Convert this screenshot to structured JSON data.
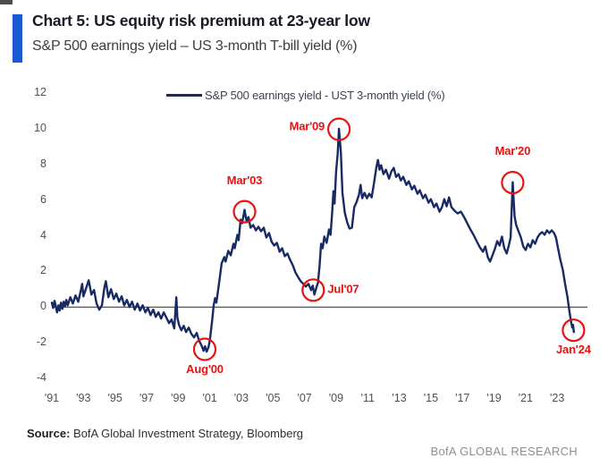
{
  "header": {
    "title": "Chart 5: US equity risk premium at 23-year low",
    "subtitle": "S&P 500 earnings yield – US 3-month T-bill yield (%)"
  },
  "footer": {
    "source_label": "Source:",
    "source_text": " BofA Global Investment Strategy, Bloomberg",
    "brand": "BofA GLOBAL RESEARCH"
  },
  "colors": {
    "line": "#182a63",
    "annotation": "#e8120f",
    "accent_bar": "#1959d1",
    "zero_line": "#3f3f3f",
    "axis_text": "#4f4f54"
  },
  "chart_data": {
    "type": "line",
    "title": "Chart 5: US equity risk premium at 23-year low",
    "subtitle": "S&P 500 earnings yield – US 3-month T-bill yield (%)",
    "legend": "S&P 500 earnings yield - UST 3-month yield (%)",
    "legend_position": "top-center",
    "grid": false,
    "zero_line": true,
    "xlabel": "",
    "ylabel": "",
    "xlim": [
      1991,
      2024.8
    ],
    "ylim": [
      -4,
      12
    ],
    "y_ticks": [
      12,
      10,
      8,
      6,
      4,
      2,
      0,
      -2,
      -4
    ],
    "x_tick_years": [
      1991,
      1993,
      1995,
      1997,
      1999,
      2001,
      2003,
      2005,
      2007,
      2009,
      2011,
      2013,
      2015,
      2017,
      2019,
      2021,
      2023
    ],
    "x_tick_labels": [
      "'91",
      "'93",
      "'95",
      "'97",
      "'99",
      "'01",
      "'03",
      "'05",
      "'07",
      "'09",
      "'11",
      "'13",
      "'15",
      "'17",
      "'19",
      "'21",
      "'23"
    ],
    "annotations": [
      {
        "label": "Aug'00",
        "year": 2000.68,
        "value": -2.37,
        "placement": "below"
      },
      {
        "label": "Mar'03",
        "year": 2003.2,
        "value": 5.35,
        "placement": "above"
      },
      {
        "label": "Jul'07",
        "year": 2007.55,
        "value": 0.95,
        "placement": "right"
      },
      {
        "label": "Mar'09",
        "year": 2009.18,
        "value": 9.97,
        "placement": "left"
      },
      {
        "label": "Mar'20",
        "year": 2020.18,
        "value": 6.98,
        "placement": "above"
      },
      {
        "label": "Jan'24",
        "year": 2024.03,
        "value": -1.3,
        "placement": "below"
      }
    ],
    "series": [
      {
        "name": "S&P 500 earnings yield - UST 3-month yield (%)",
        "points": [
          [
            1991.0,
            0.25
          ],
          [
            1991.08,
            -0.05
          ],
          [
            1991.17,
            0.35
          ],
          [
            1991.25,
            0.05
          ],
          [
            1991.33,
            -0.3
          ],
          [
            1991.42,
            0.1
          ],
          [
            1991.5,
            -0.2
          ],
          [
            1991.58,
            0.25
          ],
          [
            1991.67,
            -0.1
          ],
          [
            1991.75,
            0.3
          ],
          [
            1991.83,
            0.05
          ],
          [
            1991.92,
            0.4
          ],
          [
            1992.0,
            0.1
          ],
          [
            1992.17,
            0.55
          ],
          [
            1992.33,
            0.2
          ],
          [
            1992.5,
            0.65
          ],
          [
            1992.67,
            0.3
          ],
          [
            1992.83,
            0.9
          ],
          [
            1992.92,
            1.3
          ],
          [
            1993.0,
            0.6
          ],
          [
            1993.17,
            1.05
          ],
          [
            1993.33,
            1.5
          ],
          [
            1993.5,
            0.7
          ],
          [
            1993.67,
            0.95
          ],
          [
            1993.83,
            0.2
          ],
          [
            1994.0,
            -0.15
          ],
          [
            1994.17,
            0.1
          ],
          [
            1994.33,
            1.1
          ],
          [
            1994.42,
            1.45
          ],
          [
            1994.58,
            0.55
          ],
          [
            1994.75,
            1.0
          ],
          [
            1994.92,
            0.45
          ],
          [
            1995.08,
            0.75
          ],
          [
            1995.25,
            0.3
          ],
          [
            1995.42,
            0.6
          ],
          [
            1995.58,
            0.1
          ],
          [
            1995.75,
            0.4
          ],
          [
            1995.92,
            0.0
          ],
          [
            1996.08,
            0.3
          ],
          [
            1996.25,
            -0.15
          ],
          [
            1996.42,
            0.2
          ],
          [
            1996.58,
            -0.2
          ],
          [
            1996.75,
            0.1
          ],
          [
            1996.92,
            -0.3
          ],
          [
            1997.08,
            -0.05
          ],
          [
            1997.25,
            -0.45
          ],
          [
            1997.42,
            -0.15
          ],
          [
            1997.58,
            -0.55
          ],
          [
            1997.75,
            -0.3
          ],
          [
            1997.92,
            -0.65
          ],
          [
            1998.08,
            -0.3
          ],
          [
            1998.25,
            -0.6
          ],
          [
            1998.42,
            -0.9
          ],
          [
            1998.58,
            -0.7
          ],
          [
            1998.75,
            -1.2
          ],
          [
            1998.88,
            0.55
          ],
          [
            1998.95,
            -0.6
          ],
          [
            1999.05,
            -1.0
          ],
          [
            1999.2,
            -1.3
          ],
          [
            1999.35,
            -1.05
          ],
          [
            1999.5,
            -1.4
          ],
          [
            1999.67,
            -1.15
          ],
          [
            1999.83,
            -1.5
          ],
          [
            2000.0,
            -1.7
          ],
          [
            2000.17,
            -1.45
          ],
          [
            2000.33,
            -1.9
          ],
          [
            2000.5,
            -2.2
          ],
          [
            2000.6,
            -2.45
          ],
          [
            2000.7,
            -2.2
          ],
          [
            2000.8,
            -2.5
          ],
          [
            2000.92,
            -2.25
          ],
          [
            2001.0,
            -1.9
          ],
          [
            2001.08,
            -1.3
          ],
          [
            2001.17,
            -0.6
          ],
          [
            2001.25,
            0.1
          ],
          [
            2001.33,
            0.5
          ],
          [
            2001.42,
            0.25
          ],
          [
            2001.58,
            1.3
          ],
          [
            2001.75,
            2.45
          ],
          [
            2001.92,
            2.8
          ],
          [
            2002.0,
            2.55
          ],
          [
            2002.17,
            3.15
          ],
          [
            2002.33,
            2.9
          ],
          [
            2002.5,
            3.55
          ],
          [
            2002.58,
            3.3
          ],
          [
            2002.75,
            4.05
          ],
          [
            2002.83,
            3.75
          ],
          [
            2002.95,
            4.9
          ],
          [
            2003.05,
            4.7
          ],
          [
            2003.2,
            5.45
          ],
          [
            2003.33,
            4.8
          ],
          [
            2003.45,
            5.05
          ],
          [
            2003.58,
            4.45
          ],
          [
            2003.75,
            4.6
          ],
          [
            2003.92,
            4.3
          ],
          [
            2004.08,
            4.5
          ],
          [
            2004.25,
            4.25
          ],
          [
            2004.42,
            4.45
          ],
          [
            2004.58,
            3.9
          ],
          [
            2004.75,
            4.15
          ],
          [
            2004.92,
            3.65
          ],
          [
            2005.08,
            3.45
          ],
          [
            2005.25,
            3.6
          ],
          [
            2005.42,
            3.1
          ],
          [
            2005.58,
            3.3
          ],
          [
            2005.75,
            2.85
          ],
          [
            2005.92,
            3.0
          ],
          [
            2006.08,
            2.65
          ],
          [
            2006.25,
            2.35
          ],
          [
            2006.42,
            1.95
          ],
          [
            2006.58,
            1.7
          ],
          [
            2006.75,
            1.45
          ],
          [
            2006.92,
            1.3
          ],
          [
            2007.08,
            1.15
          ],
          [
            2007.25,
            1.3
          ],
          [
            2007.42,
            0.95
          ],
          [
            2007.52,
            1.2
          ],
          [
            2007.62,
            0.7
          ],
          [
            2007.75,
            1.1
          ],
          [
            2007.85,
            1.35
          ],
          [
            2007.95,
            2.3
          ],
          [
            2008.05,
            3.55
          ],
          [
            2008.15,
            3.3
          ],
          [
            2008.25,
            3.95
          ],
          [
            2008.4,
            3.6
          ],
          [
            2008.55,
            4.35
          ],
          [
            2008.65,
            4.05
          ],
          [
            2008.75,
            5.3
          ],
          [
            2008.83,
            6.5
          ],
          [
            2008.9,
            5.8
          ],
          [
            2009.0,
            7.6
          ],
          [
            2009.1,
            8.6
          ],
          [
            2009.18,
            10.0
          ],
          [
            2009.3,
            8.7
          ],
          [
            2009.4,
            6.4
          ],
          [
            2009.55,
            5.3
          ],
          [
            2009.7,
            4.75
          ],
          [
            2009.85,
            4.4
          ],
          [
            2010.0,
            4.45
          ],
          [
            2010.15,
            5.6
          ],
          [
            2010.3,
            5.9
          ],
          [
            2010.45,
            6.3
          ],
          [
            2010.55,
            6.85
          ],
          [
            2010.65,
            6.1
          ],
          [
            2010.8,
            6.4
          ],
          [
            2010.95,
            6.1
          ],
          [
            2011.1,
            6.35
          ],
          [
            2011.25,
            6.15
          ],
          [
            2011.4,
            6.95
          ],
          [
            2011.55,
            7.85
          ],
          [
            2011.65,
            8.25
          ],
          [
            2011.75,
            7.7
          ],
          [
            2011.85,
            7.95
          ],
          [
            2012.0,
            7.45
          ],
          [
            2012.15,
            7.7
          ],
          [
            2012.35,
            7.2
          ],
          [
            2012.5,
            7.6
          ],
          [
            2012.65,
            7.8
          ],
          [
            2012.8,
            7.3
          ],
          [
            2012.95,
            7.45
          ],
          [
            2013.1,
            7.1
          ],
          [
            2013.25,
            7.3
          ],
          [
            2013.45,
            6.85
          ],
          [
            2013.6,
            7.05
          ],
          [
            2013.8,
            6.6
          ],
          [
            2013.95,
            6.8
          ],
          [
            2014.15,
            6.35
          ],
          [
            2014.3,
            6.55
          ],
          [
            2014.5,
            6.1
          ],
          [
            2014.65,
            6.3
          ],
          [
            2014.85,
            5.85
          ],
          [
            2015.0,
            6.05
          ],
          [
            2015.2,
            5.6
          ],
          [
            2015.35,
            5.8
          ],
          [
            2015.55,
            5.35
          ],
          [
            2015.7,
            5.6
          ],
          [
            2015.85,
            6.05
          ],
          [
            2016.0,
            5.65
          ],
          [
            2016.15,
            6.15
          ],
          [
            2016.3,
            5.6
          ],
          [
            2016.5,
            5.4
          ],
          [
            2016.7,
            5.25
          ],
          [
            2016.9,
            5.35
          ],
          [
            2017.1,
            5.05
          ],
          [
            2017.3,
            4.7
          ],
          [
            2017.5,
            4.35
          ],
          [
            2017.7,
            4.05
          ],
          [
            2017.9,
            3.7
          ],
          [
            2018.1,
            3.35
          ],
          [
            2018.3,
            3.1
          ],
          [
            2018.45,
            3.4
          ],
          [
            2018.6,
            2.8
          ],
          [
            2018.75,
            2.55
          ],
          [
            2018.9,
            2.9
          ],
          [
            2019.05,
            3.25
          ],
          [
            2019.2,
            3.7
          ],
          [
            2019.35,
            3.45
          ],
          [
            2019.5,
            3.95
          ],
          [
            2019.65,
            3.3
          ],
          [
            2019.8,
            3.0
          ],
          [
            2019.95,
            3.5
          ],
          [
            2020.05,
            3.9
          ],
          [
            2020.18,
            7.0
          ],
          [
            2020.3,
            5.1
          ],
          [
            2020.4,
            4.6
          ],
          [
            2020.55,
            4.25
          ],
          [
            2020.7,
            3.9
          ],
          [
            2020.85,
            3.4
          ],
          [
            2021.0,
            3.2
          ],
          [
            2021.15,
            3.55
          ],
          [
            2021.3,
            3.35
          ],
          [
            2021.45,
            3.75
          ],
          [
            2021.6,
            3.55
          ],
          [
            2021.75,
            3.9
          ],
          [
            2021.9,
            4.1
          ],
          [
            2022.05,
            4.2
          ],
          [
            2022.2,
            4.05
          ],
          [
            2022.35,
            4.3
          ],
          [
            2022.5,
            4.15
          ],
          [
            2022.65,
            4.3
          ],
          [
            2022.8,
            4.15
          ],
          [
            2022.92,
            3.9
          ],
          [
            2023.05,
            3.3
          ],
          [
            2023.2,
            2.65
          ],
          [
            2023.35,
            2.1
          ],
          [
            2023.5,
            1.3
          ],
          [
            2023.65,
            0.55
          ],
          [
            2023.78,
            -0.3
          ],
          [
            2023.88,
            -0.85
          ],
          [
            2023.95,
            -1.15
          ],
          [
            2024.0,
            -1.0
          ],
          [
            2024.05,
            -1.4
          ]
        ]
      }
    ]
  }
}
